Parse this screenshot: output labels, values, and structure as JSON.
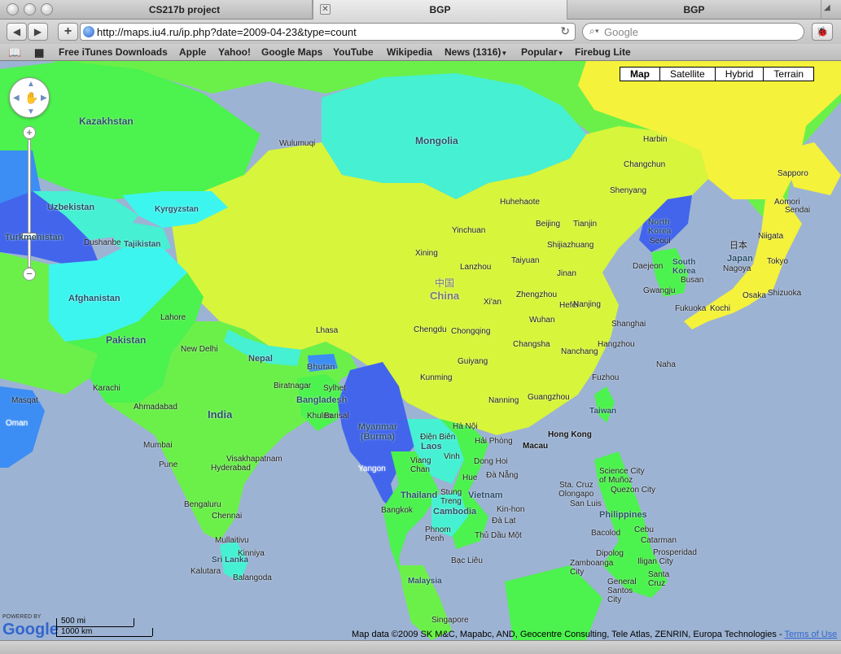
{
  "tabs": [
    {
      "label": "CS217b project"
    },
    {
      "label": "BGP"
    },
    {
      "label": "BGP"
    }
  ],
  "toolbar": {
    "url": "http://maps.iu4.ru/ip.php?date=2009-04-23&type=count",
    "search_placeholder": "Google"
  },
  "bookmarks": [
    {
      "label": "Free iTunes Downloads"
    },
    {
      "label": "Apple"
    },
    {
      "label": "Yahoo!"
    },
    {
      "label": "Google Maps"
    },
    {
      "label": "YouTube"
    },
    {
      "label": "Wikipedia"
    },
    {
      "label": "News (1316)"
    },
    {
      "label": "Popular"
    },
    {
      "label": "Firebug Lite"
    }
  ],
  "map_types": [
    "Map",
    "Satellite",
    "Hybrid",
    "Terrain"
  ],
  "countries": [
    {
      "name": "Kazakhstan"
    },
    {
      "name": "Mongolia"
    },
    {
      "name": "Uzbekistan"
    },
    {
      "name": "Kyrgyzstan"
    },
    {
      "name": "Turkmenistan"
    },
    {
      "name": "Tajikistan"
    },
    {
      "name": "Afghanistan"
    },
    {
      "name": "Pakistan"
    },
    {
      "name": "India"
    },
    {
      "name": "Nepal"
    },
    {
      "name": "Bhutan"
    },
    {
      "name": "Bangladesh"
    },
    {
      "name": "Myanmar (Burma)"
    },
    {
      "name": "中国"
    },
    {
      "name": "China"
    },
    {
      "name": "North Korea"
    },
    {
      "name": "South Korea"
    },
    {
      "name": "日本"
    },
    {
      "name": "Japan"
    },
    {
      "name": "Laos"
    },
    {
      "name": "Thailand"
    },
    {
      "name": "Vietnam"
    },
    {
      "name": "Cambodia"
    },
    {
      "name": "Philippines"
    },
    {
      "name": "Malaysia"
    },
    {
      "name": "Sri Lanka"
    },
    {
      "name": "Oman"
    },
    {
      "name": "Taiwan"
    },
    {
      "name": "Macau"
    },
    {
      "name": "Hong Kong"
    }
  ],
  "cities": [
    {
      "name": "Harbin"
    },
    {
      "name": "Changchun"
    },
    {
      "name": "Shenyang"
    },
    {
      "name": "Huhehaote"
    },
    {
      "name": "Beijing"
    },
    {
      "name": "Tianjin"
    },
    {
      "name": "Shijiazhuang"
    },
    {
      "name": "Yinchuan"
    },
    {
      "name": "Taiyuan"
    },
    {
      "name": "Jinan"
    },
    {
      "name": "Xining"
    },
    {
      "name": "Lanzhou"
    },
    {
      "name": "Zhengzhou"
    },
    {
      "name": "Xi'an"
    },
    {
      "name": "Hefei"
    },
    {
      "name": "Nanjing"
    },
    {
      "name": "Wuhan"
    },
    {
      "name": "Shanghai"
    },
    {
      "name": "Hangzhou"
    },
    {
      "name": "Chengdu"
    },
    {
      "name": "Chongqing"
    },
    {
      "name": "Changsha"
    },
    {
      "name": "Nanchang"
    },
    {
      "name": "Guiyang"
    },
    {
      "name": "Fuzhou"
    },
    {
      "name": "Kunming"
    },
    {
      "name": "Nanning"
    },
    {
      "name": "Guangzhou"
    },
    {
      "name": "Lhasa"
    },
    {
      "name": "Wulumuqi"
    },
    {
      "name": "Seoul"
    },
    {
      "name": "Daejeon"
    },
    {
      "name": "Busan"
    },
    {
      "name": "Gwangju"
    },
    {
      "name": "Sapporo"
    },
    {
      "name": "Aomori"
    },
    {
      "name": "Sendai"
    },
    {
      "name": "Niigata"
    },
    {
      "name": "Tokyo"
    },
    {
      "name": "Nagoya"
    },
    {
      "name": "Osaka"
    },
    {
      "name": "Kochi"
    },
    {
      "name": "Fukuoka"
    },
    {
      "name": "Shizuoka"
    },
    {
      "name": "Naha"
    },
    {
      "name": "Dushanbe"
    },
    {
      "name": "Lahore"
    },
    {
      "name": "New Delhi"
    },
    {
      "name": "Karachi"
    },
    {
      "name": "Ahmadabad"
    },
    {
      "name": "Mumbai"
    },
    {
      "name": "Pune"
    },
    {
      "name": "Hyderabad"
    },
    {
      "name": "Visakhapatnam"
    },
    {
      "name": "Bengaluru"
    },
    {
      "name": "Chennai"
    },
    {
      "name": "Biratnagar"
    },
    {
      "name": "Sylhet"
    },
    {
      "name": "Khulna"
    },
    {
      "name": "Barisal"
    },
    {
      "name": "Masqat"
    },
    {
      "name": "Yangon"
    },
    {
      "name": "Hà Nội"
    },
    {
      "name": "Điện Biên"
    },
    {
      "name": "Hải Phòng"
    },
    {
      "name": "Viang Chan"
    },
    {
      "name": "Vinh"
    },
    {
      "name": "Dong Hoi"
    },
    {
      "name": "Hue"
    },
    {
      "name": "Đà Nẵng"
    },
    {
      "name": "Stung Treng"
    },
    {
      "name": "Bangkok"
    },
    {
      "name": "Phnom Penh"
    },
    {
      "name": "Kin-hon"
    },
    {
      "name": "Đà Lạt"
    },
    {
      "name": "Thủ Dầu Một"
    },
    {
      "name": "Bạc Liêu"
    },
    {
      "name": "Mullaitivu"
    },
    {
      "name": "Kinniya"
    },
    {
      "name": "Kalutara"
    },
    {
      "name": "Balangoda"
    },
    {
      "name": "Singapore"
    },
    {
      "name": "Quezon City"
    },
    {
      "name": "Science City of Muñoz"
    },
    {
      "name": "Sta. Cruz"
    },
    {
      "name": "Olongapo"
    },
    {
      "name": "San Luis"
    },
    {
      "name": "Bacolod"
    },
    {
      "name": "Cebu"
    },
    {
      "name": "Catarman"
    },
    {
      "name": "Dipolog"
    },
    {
      "name": "Prosperidad"
    },
    {
      "name": "Iligan City"
    },
    {
      "name": "Zamboanga City"
    },
    {
      "name": "Santa Cruz"
    },
    {
      "name": "General Santos City"
    }
  ],
  "map_controls": {
    "zoom_in": "+",
    "zoom_out": "−"
  },
  "scale": {
    "top": "500 mi",
    "bottom": "1000 km"
  },
  "google_logo": {
    "powered": "POWERED BY",
    "brand": "Google"
  },
  "attribution": {
    "text": "Map data ©2009 SK M&C, Mapabc, AND, Geocentre Consulting, Tele Atlas, ZENRIN, Europa Technologies - ",
    "terms": "Terms of Use"
  },
  "colors": {
    "yellow": "#f4f23a",
    "lime": "#d7f53b",
    "green": "#6bf04a",
    "bright_green": "#4cf24d",
    "cyan": "#46f0d2",
    "aqua": "#3df5ef",
    "blue": "#4265ec",
    "mid_blue": "#3c8df4",
    "water": "#9db3d3"
  }
}
